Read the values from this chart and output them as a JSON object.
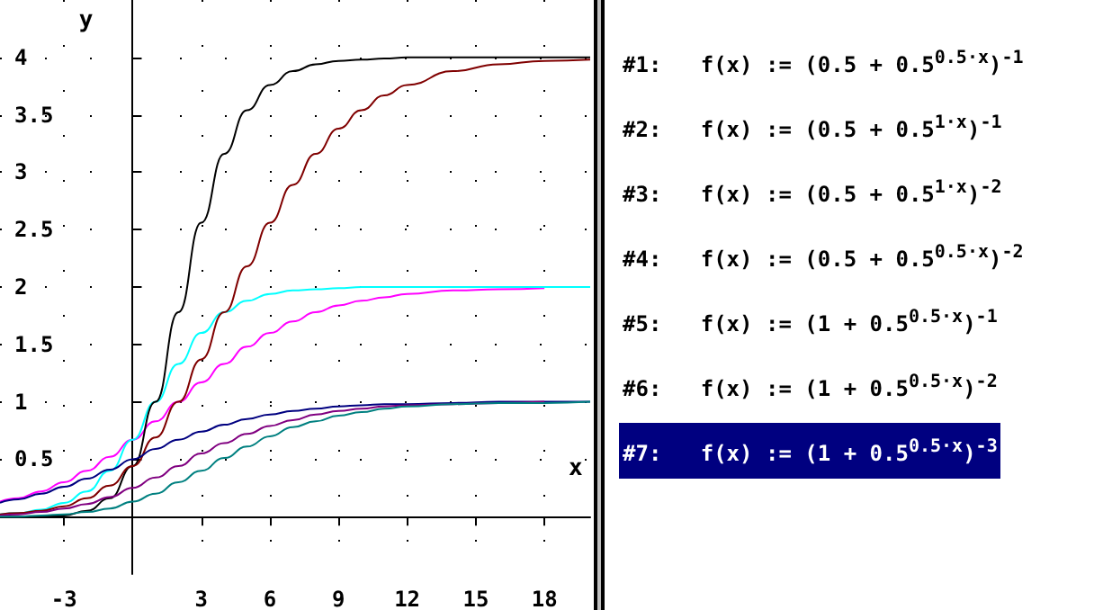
{
  "chart_data": {
    "type": "line",
    "xlabel": "x",
    "ylabel": "y",
    "x": [
      -5.8,
      -5,
      -4,
      -3,
      -2,
      -1,
      0,
      1,
      2,
      3,
      4,
      5,
      6,
      7,
      8,
      9,
      10,
      11,
      12,
      14,
      16,
      18,
      20
    ],
    "xlim": [
      -5.8,
      20
    ],
    "ylim": [
      -0.5,
      4.5
    ],
    "xticks": [
      -3,
      3,
      6,
      9,
      12,
      15,
      18
    ],
    "yticks": [
      0.5,
      1,
      1.5,
      2,
      2.5,
      3,
      3.5,
      4
    ],
    "grid": true,
    "marker": "none",
    "series": [
      {
        "color": "#ff00ff",
        "values": [
          0.13,
          0.16,
          0.22,
          0.3,
          0.4,
          0.52,
          0.67,
          0.83,
          1.0,
          1.17,
          1.33,
          1.48,
          1.6,
          1.7,
          1.78,
          1.84,
          1.88,
          1.91,
          1.94,
          1.97,
          1.98,
          1.99,
          null
        ]
      },
      {
        "color": "#00ffff",
        "values": [
          0.02,
          0.03,
          0.06,
          0.12,
          0.22,
          0.4,
          0.67,
          1.0,
          1.33,
          1.6,
          1.78,
          1.88,
          1.94,
          1.97,
          1.98,
          1.99,
          2.0,
          2.0,
          2.0,
          2.0,
          2.0,
          2.0,
          2.0
        ]
      },
      {
        "color": "#000000",
        "values": [
          0.0,
          0.0,
          0.0,
          0.01,
          0.05,
          0.16,
          0.44,
          1.0,
          1.78,
          2.56,
          3.16,
          3.54,
          3.76,
          3.88,
          3.94,
          3.97,
          3.98,
          3.99,
          4.0,
          4.0,
          4.0,
          4.0,
          4.0
        ]
      },
      {
        "color": "#800000",
        "values": [
          0.02,
          0.03,
          0.05,
          0.09,
          0.16,
          0.27,
          0.44,
          0.69,
          1.0,
          1.37,
          1.78,
          2.18,
          2.56,
          2.89,
          3.16,
          3.38,
          3.54,
          3.67,
          3.76,
          3.88,
          3.94,
          3.97,
          3.98
        ]
      },
      {
        "color": "#000080",
        "values": [
          0.12,
          0.15,
          0.2,
          0.26,
          0.33,
          0.41,
          0.5,
          0.59,
          0.67,
          0.74,
          0.8,
          0.85,
          0.89,
          0.92,
          0.94,
          0.96,
          0.97,
          0.98,
          0.98,
          0.99,
          1.0,
          1.0,
          1.0
        ]
      },
      {
        "color": "#800080",
        "values": [
          0.01,
          0.02,
          0.04,
          0.07,
          0.11,
          0.17,
          0.25,
          0.34,
          0.44,
          0.55,
          0.64,
          0.72,
          0.79,
          0.84,
          0.89,
          0.92,
          0.94,
          0.96,
          0.97,
          0.98,
          0.99,
          1.0,
          null
        ]
      },
      {
        "color": "#008080",
        "values": [
          0.0,
          0.0,
          0.01,
          0.02,
          0.04,
          0.07,
          0.13,
          0.2,
          0.3,
          0.4,
          0.51,
          0.61,
          0.7,
          0.78,
          0.83,
          0.88,
          0.91,
          0.94,
          0.96,
          0.98,
          0.99,
          0.99,
          1.0
        ]
      }
    ],
    "annotations": [
      "#1:   f(x) := (0.5 + 0.5$^{0.5·x}$)$^{-1}$",
      "#2:   f(x) := (0.5 + 0.5$^{1·x}$)$^{-1}$",
      "#3:   f(x) := (0.5 + 0.5$^{1·x}$)$^{-2}$",
      "#4:   f(x) := (0.5 + 0.5$^{0.5·x}$)$^{-2}$",
      "#5:   f(x) := (1 + 0.5$^{0.5·x}$)$^{-1}$",
      "#6:   f(x) := (1 + 0.5$^{0.5·x}$)$^{-2}$",
      "#7:   f(x) := (1 + 0.5$^{0.5·x}$)$^{-3}$"
    ]
  }
}
